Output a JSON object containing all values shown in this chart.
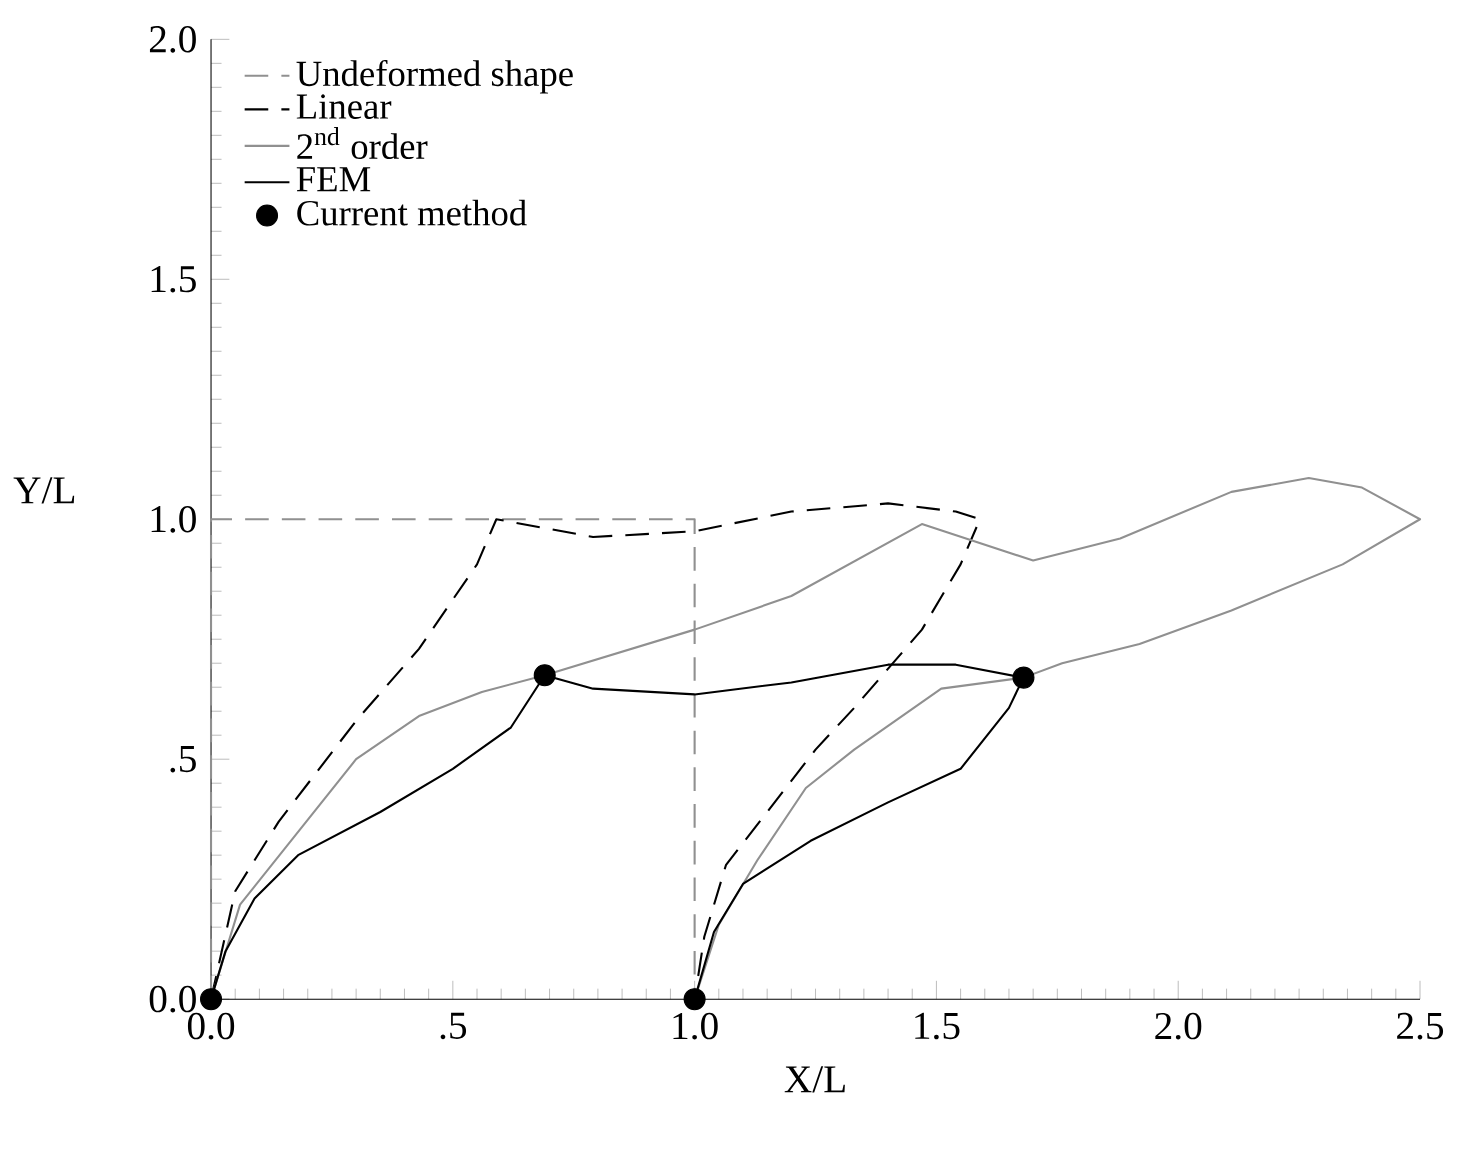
{
  "chart_data": {
    "type": "line",
    "xlabel": "X/L",
    "ylabel": "Y/L",
    "legend": "top left",
    "marker": "none",
    "xlim": [
      0,
      2.5
    ],
    "ylim": [
      0,
      2.0
    ],
    "xticks": [
      {
        "value": 0,
        "label": "0.0"
      },
      {
        "value": 0.5,
        "label": ".5"
      },
      {
        "value": 1.0,
        "label": "1.0"
      },
      {
        "value": 1.5,
        "label": "1.5"
      },
      {
        "value": 2.0,
        "label": "2.0"
      },
      {
        "value": 2.5,
        "label": "2.5"
      }
    ],
    "yticks": [
      {
        "value": 0,
        "label": "0.0"
      },
      {
        "value": 0.5,
        "label": ".5"
      },
      {
        "value": 1.0,
        "label": "1.0"
      },
      {
        "value": 1.5,
        "label": "1.5"
      },
      {
        "value": 2.0,
        "label": "2.0"
      }
    ],
    "series": [
      {
        "name": "Undeformed shape",
        "color": "#909090",
        "line_style": "dashed",
        "x": [
          0,
          0,
          1,
          1
        ],
        "values": [
          0,
          1,
          1,
          0
        ]
      },
      {
        "name": "Linear",
        "color": "#000000",
        "line_style": "dashed",
        "x": [
          0,
          0.05,
          0.14,
          0.3,
          0.43,
          0.55,
          0.59,
          0.79,
          1.0,
          1.2,
          1.4,
          1.54,
          1.59,
          1.55,
          1.47,
          1.33,
          1.25,
          1.15,
          1.065,
          1.02,
          1.0
        ],
        "values": [
          0,
          0.225,
          0.37,
          0.58,
          0.73,
          0.906,
          1.0,
          0.963,
          0.975,
          1.016,
          1.033,
          1.016,
          1.0,
          0.906,
          0.77,
          0.607,
          0.52,
          0.39,
          0.28,
          0.13,
          0
        ]
      },
      {
        "name": "2$^{nd}$ order",
        "color": "#909090",
        "line_style": "solid",
        "x": [
          0,
          0.06,
          0.3,
          0.43,
          0.56,
          0.69,
          1.0,
          1.2,
          1.47,
          1.7,
          1.88,
          2.11,
          2.27,
          2.38,
          2.5,
          2.34,
          2.11,
          1.92,
          1.76,
          1.68,
          1.51,
          1.33,
          1.23,
          1.13,
          1.05,
          1.0
        ],
        "values": [
          0,
          0.197,
          0.5,
          0.59,
          0.64,
          0.675,
          0.77,
          0.84,
          0.99,
          0.914,
          0.96,
          1.057,
          1.086,
          1.066,
          1.0,
          0.906,
          0.81,
          0.74,
          0.7,
          0.67,
          0.647,
          0.52,
          0.44,
          0.29,
          0.155,
          0
        ]
      },
      {
        "name": "FEM",
        "color": "#000000",
        "line_style": "solid",
        "x": [
          0,
          0.03,
          0.09,
          0.18,
          0.35,
          0.5,
          0.62,
          0.69,
          0.79,
          1.0,
          1.2,
          1.4,
          1.54,
          1.68,
          1.65,
          1.55,
          1.4,
          1.24,
          1.1,
          1.04,
          1.0
        ],
        "values": [
          0,
          0.1,
          0.21,
          0.3,
          0.39,
          0.48,
          0.566,
          0.675,
          0.647,
          0.635,
          0.66,
          0.697,
          0.697,
          0.67,
          0.607,
          0.48,
          0.41,
          0.33,
          0.24,
          0.14,
          0
        ]
      },
      {
        "name": "Current method",
        "type": "scatter",
        "color": "#000000",
        "marker": "circle",
        "x": [
          0,
          0.69,
          1.68,
          1.0
        ],
        "values": [
          0,
          0.675,
          0.67,
          0
        ]
      }
    ]
  }
}
